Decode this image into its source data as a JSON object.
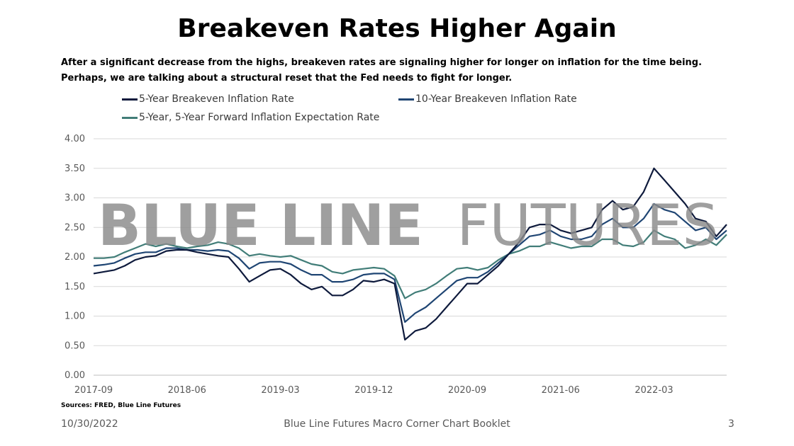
{
  "slide": {
    "title": "Breakeven Rates Higher Again",
    "subtitle": "After a significant decrease from the highs, breakeven rates are signaling higher for longer on inflation for the time being. Perhaps, we are talking about a structural reset that the Fed needs to fight for longer.",
    "watermark_bold": "BLUE LINE",
    "watermark_light": "FUTURES",
    "source": "Sources: FRED, Blue Line Futures",
    "footer_date": "10/30/2022",
    "footer_center": "Blue Line Futures Macro Corner Chart Booklet",
    "page_number": "3"
  },
  "chart_data": {
    "type": "line",
    "title": "",
    "xlabel": "",
    "ylabel": "",
    "ylim": [
      0,
      4
    ],
    "yticks": [
      "0.00",
      "0.50",
      "1.00",
      "1.50",
      "2.00",
      "2.50",
      "3.00",
      "3.50",
      "4.00"
    ],
    "xticks": [
      "2017-09",
      "2018-06",
      "2019-03",
      "2019-12",
      "2020-09",
      "2021-06",
      "2022-03"
    ],
    "grid": "horizontal",
    "legend": "top",
    "x": [
      "2017-09",
      "2017-10",
      "2017-11",
      "2017-12",
      "2018-01",
      "2018-02",
      "2018-03",
      "2018-04",
      "2018-05",
      "2018-06",
      "2018-07",
      "2018-08",
      "2018-09",
      "2018-10",
      "2018-11",
      "2018-12",
      "2019-01",
      "2019-02",
      "2019-03",
      "2019-04",
      "2019-05",
      "2019-06",
      "2019-07",
      "2019-08",
      "2019-09",
      "2019-10",
      "2019-11",
      "2019-12",
      "2020-01",
      "2020-02",
      "2020-03",
      "2020-04",
      "2020-05",
      "2020-06",
      "2020-07",
      "2020-08",
      "2020-09",
      "2020-10",
      "2020-11",
      "2020-12",
      "2021-01",
      "2021-02",
      "2021-03",
      "2021-04",
      "2021-05",
      "2021-06",
      "2021-07",
      "2021-08",
      "2021-09",
      "2021-10",
      "2021-11",
      "2021-12",
      "2022-01",
      "2022-02",
      "2022-03",
      "2022-04",
      "2022-05",
      "2022-06",
      "2022-07",
      "2022-08",
      "2022-09",
      "2022-10"
    ],
    "series": [
      {
        "name": "5-Year Breakeven Inflation Rate",
        "color": "#0e1a3c",
        "values": [
          1.72,
          1.75,
          1.78,
          1.85,
          1.95,
          2.0,
          2.02,
          2.1,
          2.12,
          2.12,
          2.08,
          2.05,
          2.02,
          2.0,
          1.8,
          1.58,
          1.68,
          1.78,
          1.8,
          1.7,
          1.55,
          1.45,
          1.5,
          1.35,
          1.35,
          1.45,
          1.6,
          1.58,
          1.62,
          1.55,
          0.6,
          0.75,
          0.8,
          0.95,
          1.15,
          1.35,
          1.55,
          1.55,
          1.7,
          1.85,
          2.05,
          2.25,
          2.5,
          2.55,
          2.55,
          2.45,
          2.4,
          2.45,
          2.5,
          2.8,
          2.95,
          2.8,
          2.85,
          3.1,
          3.5,
          3.3,
          3.1,
          2.9,
          2.65,
          2.6,
          2.35,
          2.55
        ]
      },
      {
        "name": "10-Year Breakeven Inflation Rate",
        "color": "#1f4573",
        "values": [
          1.85,
          1.87,
          1.9,
          1.98,
          2.05,
          2.08,
          2.08,
          2.15,
          2.15,
          2.12,
          2.12,
          2.1,
          2.12,
          2.1,
          1.98,
          1.8,
          1.9,
          1.92,
          1.92,
          1.88,
          1.78,
          1.7,
          1.7,
          1.58,
          1.58,
          1.62,
          1.7,
          1.72,
          1.72,
          1.62,
          0.9,
          1.05,
          1.15,
          1.3,
          1.45,
          1.6,
          1.65,
          1.65,
          1.75,
          1.9,
          2.05,
          2.2,
          2.35,
          2.38,
          2.45,
          2.35,
          2.3,
          2.3,
          2.35,
          2.55,
          2.65,
          2.5,
          2.5,
          2.65,
          2.9,
          2.8,
          2.75,
          2.6,
          2.45,
          2.5,
          2.3,
          2.45
        ]
      },
      {
        "name": "5-Year, 5-Year Forward Inflation Expectation Rate",
        "color": "#417d78",
        "values": [
          1.98,
          1.98,
          2.0,
          2.08,
          2.15,
          2.22,
          2.18,
          2.22,
          2.18,
          2.15,
          2.18,
          2.2,
          2.25,
          2.22,
          2.15,
          2.02,
          2.05,
          2.02,
          2.0,
          2.02,
          1.95,
          1.88,
          1.85,
          1.75,
          1.72,
          1.78,
          1.8,
          1.82,
          1.8,
          1.68,
          1.3,
          1.4,
          1.45,
          1.55,
          1.68,
          1.8,
          1.82,
          1.78,
          1.82,
          1.95,
          2.05,
          2.1,
          2.18,
          2.18,
          2.25,
          2.2,
          2.15,
          2.18,
          2.18,
          2.3,
          2.3,
          2.2,
          2.18,
          2.25,
          2.45,
          2.35,
          2.3,
          2.15,
          2.2,
          2.3,
          2.2,
          2.38
        ]
      }
    ]
  }
}
